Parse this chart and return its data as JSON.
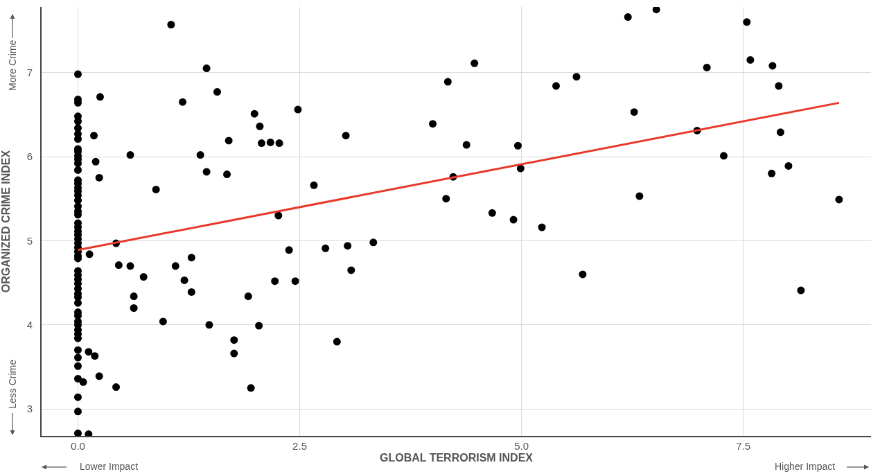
{
  "chart_data": {
    "type": "scatter",
    "xlabel": "GLOBAL TERRORISM INDEX",
    "ylabel": "ORGANIZED CRIME INDEX",
    "annotations": [
      "More Crime",
      "Less Crime",
      "Lower Impact",
      "Higher Impact"
    ],
    "xlim": [
      -0.41,
      8.94
    ],
    "ylim": [
      2.68,
      7.78
    ],
    "xticks": [
      {
        "value": 0,
        "label": "0.0"
      },
      {
        "value": 2.5,
        "label": "2.5"
      },
      {
        "value": 5,
        "label": "5.0"
      },
      {
        "value": 7.5,
        "label": "7.5"
      }
    ],
    "yticks": [
      3,
      4,
      5,
      6,
      7
    ],
    "grid": true,
    "marker": "circle",
    "series": [
      {
        "color": "#000000",
        "x": [
          0,
          0,
          0,
          0,
          0,
          0,
          0,
          0,
          0,
          0,
          0,
          0,
          0,
          0,
          0,
          0,
          0,
          0,
          0,
          0,
          0,
          0,
          0,
          0,
          0,
          0,
          0,
          0,
          0,
          0,
          0,
          0,
          0,
          0,
          0,
          0,
          0,
          0,
          0,
          0,
          0,
          0,
          0,
          0,
          0,
          0,
          0,
          0,
          0,
          0,
          0,
          0,
          0,
          0,
          0,
          1.05,
          1.45,
          1.57,
          1.18,
          0.25,
          0.18,
          0.2,
          0.24,
          0.59,
          0.88,
          1.38,
          1.45,
          1.7,
          1.68,
          1.99,
          2.05,
          2.07,
          2.17,
          2.27,
          2.48,
          2.26,
          2.66,
          3.02,
          2.38,
          2.79,
          3.04,
          3.33,
          3.08,
          2.22,
          2.45,
          1.92,
          2.04,
          1.76,
          1.76,
          1.95,
          2.92,
          0.13,
          0.43,
          0.46,
          0.59,
          0.74,
          1.1,
          1.28,
          1.2,
          1.28,
          0.63,
          0.63,
          0.96,
          1.48,
          0.12,
          0.19,
          0.24,
          0.06,
          0.43,
          0.12,
          4.0,
          4.17,
          4.47,
          4.38,
          4.96,
          4.99,
          4.23,
          4.15,
          4.67,
          4.91,
          5.23,
          5.39,
          5.62,
          5.69,
          6.2,
          6.52,
          6.27,
          6.33,
          7.09,
          6.98,
          7.28,
          7.54,
          7.58,
          7.83,
          7.9,
          7.92,
          7.82,
          8.01,
          8.15,
          8.58
        ],
        "values": [
          6.98,
          6.68,
          6.64,
          6.48,
          6.42,
          6.34,
          6.27,
          6.21,
          6.09,
          6.06,
          6.01,
          5.97,
          5.92,
          5.84,
          5.72,
          5.68,
          5.63,
          5.59,
          5.54,
          5.48,
          5.41,
          5.35,
          5.31,
          5.21,
          5.16,
          5.11,
          5.07,
          5.02,
          4.97,
          4.92,
          4.87,
          4.82,
          4.79,
          4.64,
          4.59,
          4.54,
          4.49,
          4.43,
          4.37,
          4.33,
          4.26,
          4.15,
          4.11,
          4.04,
          4.0,
          3.94,
          3.89,
          3.84,
          3.7,
          3.61,
          3.51,
          3.36,
          3.14,
          2.97,
          2.71,
          7.57,
          7.05,
          6.77,
          6.65,
          6.71,
          6.25,
          5.94,
          5.75,
          6.02,
          5.61,
          6.02,
          5.82,
          6.19,
          5.79,
          6.51,
          6.36,
          6.16,
          6.17,
          6.16,
          6.56,
          5.3,
          5.66,
          6.25,
          4.89,
          4.91,
          4.94,
          4.98,
          4.65,
          4.52,
          4.52,
          4.34,
          3.99,
          3.82,
          3.66,
          3.25,
          3.8,
          4.84,
          4.97,
          4.71,
          4.7,
          4.57,
          4.7,
          4.8,
          4.53,
          4.39,
          4.34,
          4.2,
          4.04,
          4.0,
          3.68,
          3.63,
          3.39,
          3.32,
          3.26,
          2.7,
          6.39,
          6.89,
          7.11,
          6.14,
          6.13,
          5.86,
          5.76,
          5.5,
          5.33,
          5.25,
          5.16,
          6.84,
          6.95,
          4.6,
          7.66,
          7.75,
          6.53,
          5.53,
          7.06,
          6.31,
          6.01,
          7.6,
          7.15,
          7.08,
          6.84,
          6.29,
          5.8,
          5.89,
          4.41,
          5.49
        ]
      },
      {
        "type": "line",
        "color": "#e8392b",
        "marker": "none",
        "line_style": "solid",
        "x": [
          0,
          8.58
        ],
        "values": [
          4.89,
          6.64
        ]
      }
    ]
  }
}
